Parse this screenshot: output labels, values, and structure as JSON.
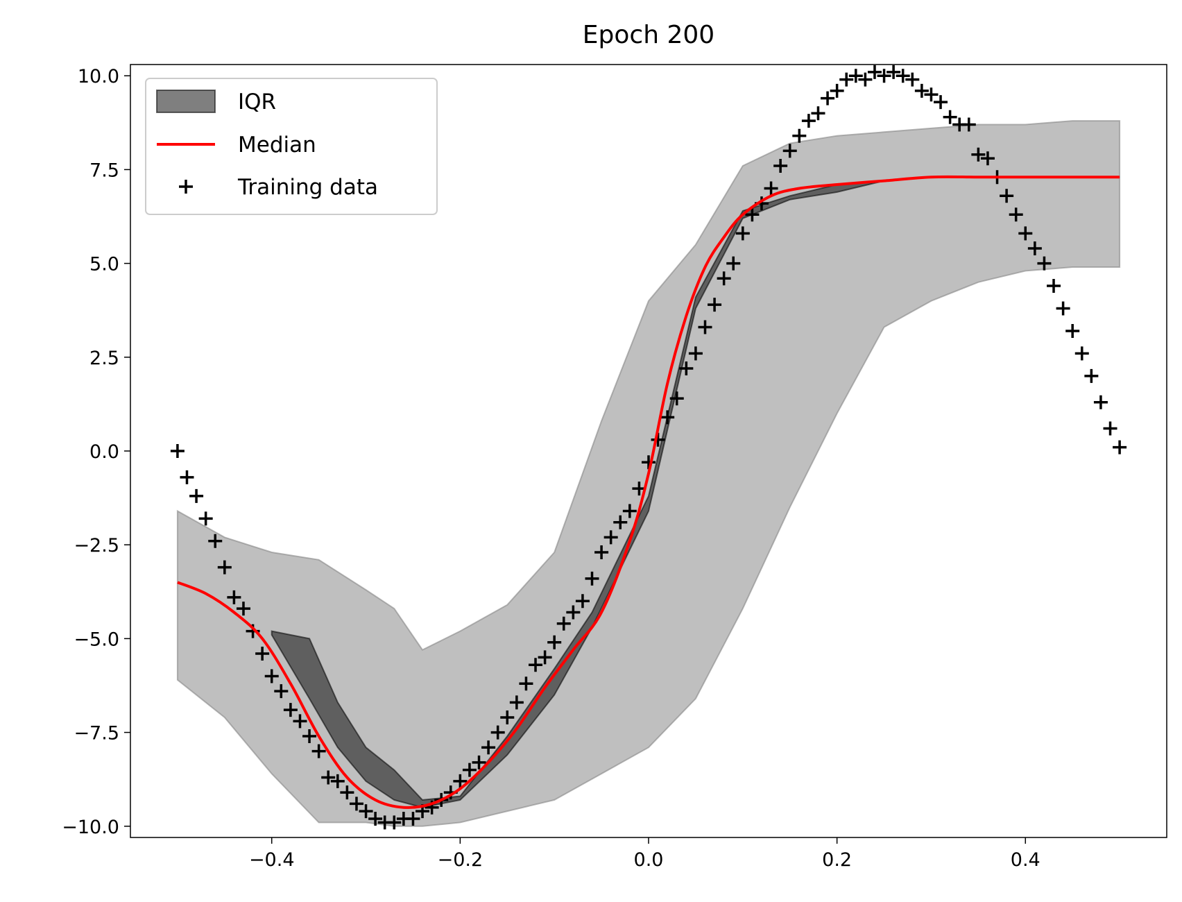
{
  "chart_data": {
    "type": "line",
    "title": "Epoch 200",
    "xlabel": "",
    "ylabel": "",
    "xlim": [
      -0.55,
      0.55
    ],
    "ylim": [
      -10.3,
      10.3
    ],
    "xticks": [
      -0.4,
      -0.2,
      0.0,
      0.2,
      0.4
    ],
    "xtick_labels": [
      "−0.4",
      "−0.2",
      "0.0",
      "0.2",
      "0.4"
    ],
    "yticks": [
      -10.0,
      -7.5,
      -5.0,
      -2.5,
      0.0,
      2.5,
      5.0,
      7.5,
      10.0
    ],
    "ytick_labels": [
      "−10.0",
      "−7.5",
      "−5.0",
      "−2.5",
      "0.0",
      "2.5",
      "5.0",
      "7.5",
      "10.0"
    ],
    "grid": false,
    "legend": {
      "placement": "top-left",
      "entries": [
        {
          "label": "IQR",
          "kind": "patch",
          "color": "#000000"
        },
        {
          "label": "Median",
          "kind": "line",
          "color": "#ff0000"
        },
        {
          "label": "Training data",
          "kind": "marker",
          "color": "#000000"
        }
      ]
    },
    "outer_band": {
      "label": "",
      "color": "#808080",
      "x": [
        -0.5,
        -0.45,
        -0.4,
        -0.35,
        -0.3,
        -0.27,
        -0.24,
        -0.2,
        -0.15,
        -0.1,
        -0.05,
        0.0,
        0.05,
        0.1,
        0.15,
        0.2,
        0.25,
        0.3,
        0.35,
        0.4,
        0.45,
        0.5
      ],
      "lower": [
        -6.1,
        -7.1,
        -8.6,
        -9.9,
        -9.9,
        -10.0,
        -10.0,
        -9.9,
        -9.6,
        -9.3,
        -8.6,
        -7.9,
        -6.6,
        -4.2,
        -1.5,
        1.0,
        3.3,
        4.0,
        4.5,
        4.8,
        4.9,
        4.9
      ],
      "upper": [
        -1.6,
        -2.3,
        -2.7,
        -2.9,
        -3.7,
        -4.2,
        -5.3,
        -4.8,
        -4.1,
        -2.7,
        0.8,
        4.0,
        5.5,
        7.6,
        8.2,
        8.4,
        8.5,
        8.6,
        8.7,
        8.7,
        8.8,
        8.8
      ]
    },
    "iqr_band": {
      "label": "IQR",
      "color": "#000000",
      "x": [
        -0.4,
        -0.36,
        -0.33,
        -0.3,
        -0.27,
        -0.24,
        -0.2,
        -0.15,
        -0.1,
        -0.06,
        0.0,
        0.05,
        0.1,
        0.15,
        0.2,
        0.25,
        0.3,
        0.35,
        0.4,
        0.45,
        0.5
      ],
      "lower": [
        -4.9,
        -6.6,
        -7.9,
        -8.8,
        -9.3,
        -9.5,
        -9.3,
        -8.1,
        -6.5,
        -4.7,
        -1.6,
        3.8,
        6.2,
        6.7,
        6.9,
        7.2,
        7.3,
        7.3,
        7.3,
        7.3,
        7.3
      ],
      "upper": [
        -4.8,
        -5.0,
        -6.7,
        -7.9,
        -8.5,
        -9.3,
        -9.2,
        -7.6,
        -5.8,
        -4.3,
        -1.2,
        4.1,
        6.4,
        6.8,
        7.1,
        7.2,
        7.3,
        7.3,
        7.3,
        7.3,
        7.3
      ]
    },
    "median": {
      "label": "Median",
      "color": "#ff0000",
      "x": [
        -0.5,
        -0.47,
        -0.44,
        -0.41,
        -0.38,
        -0.35,
        -0.32,
        -0.29,
        -0.26,
        -0.23,
        -0.2,
        -0.17,
        -0.14,
        -0.11,
        -0.08,
        -0.05,
        -0.02,
        0.0,
        0.02,
        0.04,
        0.06,
        0.08,
        0.1,
        0.13,
        0.16,
        0.2,
        0.25,
        0.3,
        0.35,
        0.4,
        0.45,
        0.5
      ],
      "y": [
        -3.5,
        -3.8,
        -4.3,
        -5.0,
        -6.2,
        -7.6,
        -8.7,
        -9.3,
        -9.5,
        -9.4,
        -9.0,
        -8.3,
        -7.4,
        -6.3,
        -5.3,
        -4.3,
        -2.4,
        -0.6,
        1.8,
        3.6,
        4.9,
        5.7,
        6.3,
        6.8,
        7.0,
        7.1,
        7.2,
        7.3,
        7.3,
        7.3,
        7.3,
        7.3
      ]
    },
    "training_data": {
      "label": "Training data",
      "color": "#000000",
      "x": [
        -0.5,
        -0.49,
        -0.48,
        -0.47,
        -0.46,
        -0.45,
        -0.44,
        -0.43,
        -0.42,
        -0.41,
        -0.4,
        -0.39,
        -0.38,
        -0.37,
        -0.36,
        -0.35,
        -0.34,
        -0.33,
        -0.32,
        -0.31,
        -0.3,
        -0.29,
        -0.28,
        -0.27,
        -0.26,
        -0.25,
        -0.24,
        -0.23,
        -0.22,
        -0.21,
        -0.2,
        -0.19,
        -0.18,
        -0.17,
        -0.16,
        -0.15,
        -0.14,
        -0.13,
        -0.12,
        -0.11,
        -0.1,
        -0.09,
        -0.08,
        -0.07,
        -0.06,
        -0.05,
        -0.04,
        -0.03,
        -0.02,
        -0.01,
        0.0,
        0.01,
        0.02,
        0.03,
        0.04,
        0.05,
        0.06,
        0.07,
        0.08,
        0.09,
        0.1,
        0.11,
        0.12,
        0.13,
        0.14,
        0.15,
        0.16,
        0.17,
        0.18,
        0.19,
        0.2,
        0.21,
        0.22,
        0.23,
        0.24,
        0.25,
        0.26,
        0.27,
        0.28,
        0.29,
        0.3,
        0.31,
        0.32,
        0.33,
        0.34,
        0.35,
        0.36,
        0.37,
        0.38,
        0.39,
        0.4,
        0.41,
        0.42,
        0.43,
        0.44,
        0.45,
        0.46,
        0.47,
        0.48,
        0.49,
        0.5
      ],
      "y": [
        0.0,
        -0.7,
        -1.2,
        -1.8,
        -2.4,
        -3.1,
        -3.9,
        -4.2,
        -4.8,
        -5.4,
        -6.0,
        -6.4,
        -6.9,
        -7.2,
        -7.6,
        -8.0,
        -8.7,
        -8.8,
        -9.1,
        -9.4,
        -9.6,
        -9.8,
        -9.9,
        -9.9,
        -9.8,
        -9.8,
        -9.6,
        -9.5,
        -9.3,
        -9.1,
        -8.8,
        -8.5,
        -8.3,
        -7.9,
        -7.5,
        -7.1,
        -6.7,
        -6.2,
        -5.7,
        -5.5,
        -5.1,
        -4.6,
        -4.3,
        -4.0,
        -3.4,
        -2.7,
        -2.3,
        -1.9,
        -1.6,
        -1.0,
        -0.3,
        0.3,
        0.9,
        1.4,
        2.2,
        2.6,
        3.3,
        3.9,
        4.6,
        5.0,
        5.8,
        6.3,
        6.6,
        7.0,
        7.6,
        8.0,
        8.4,
        8.8,
        9.0,
        9.4,
        9.6,
        9.9,
        10.0,
        9.9,
        10.1,
        10.0,
        10.1,
        10.0,
        9.9,
        9.6,
        9.5,
        9.3,
        8.9,
        8.7,
        8.7,
        7.9,
        7.8,
        7.3,
        6.8,
        6.3,
        5.8,
        5.4,
        5.0,
        4.4,
        3.8,
        3.2,
        2.6,
        2.0,
        1.3,
        0.6,
        0.1
      ]
    }
  }
}
